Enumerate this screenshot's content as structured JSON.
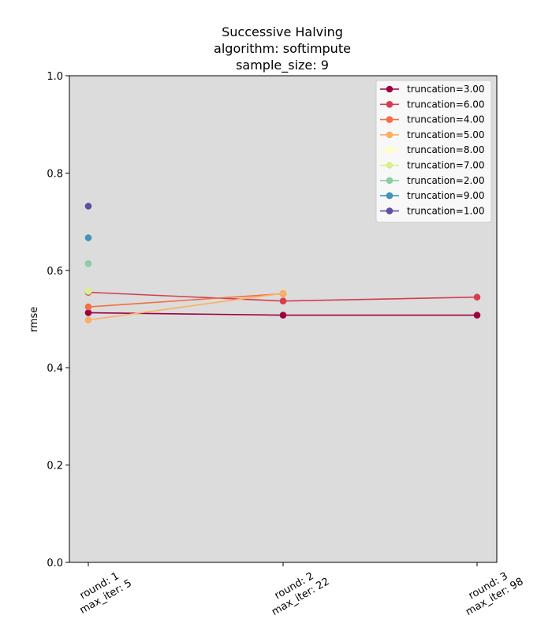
{
  "chart_data": {
    "type": "line",
    "title_lines": [
      "Successive Halving",
      "algorithm: softimpute",
      "sample_size: 9"
    ],
    "xlabel": "",
    "ylabel": "rmse",
    "ylim": [
      0,
      1
    ],
    "yticks": [
      "0.0",
      "0.2",
      "0.4",
      "0.6",
      "0.8",
      "1.0"
    ],
    "grid": false,
    "background": "#dcdcdc",
    "legend_position": "top-right",
    "x_categories": [
      [
        "round: 1",
        "max_iter: 5"
      ],
      [
        "round: 2",
        "max_iter: 22"
      ],
      [
        "round: 3",
        "max_iter: 98"
      ]
    ],
    "series": [
      {
        "name": "truncation=3.00",
        "color": "#9e0142",
        "values": [
          0.513,
          0.508,
          0.508
        ]
      },
      {
        "name": "truncation=6.00",
        "color": "#d53e4f",
        "values": [
          0.555,
          0.537,
          0.545
        ]
      },
      {
        "name": "truncation=4.00",
        "color": "#f46d43",
        "values": [
          0.525,
          0.552,
          null
        ]
      },
      {
        "name": "truncation=5.00",
        "color": "#fdae61",
        "values": [
          0.498,
          0.553,
          null
        ]
      },
      {
        "name": "truncation=8.00",
        "color": "#ffffbf",
        "values": [
          0.557,
          null,
          null
        ]
      },
      {
        "name": "truncation=7.00",
        "color": "#d8ef8b",
        "values": [
          0.557,
          null,
          null
        ]
      },
      {
        "name": "truncation=2.00",
        "color": "#88d0a4",
        "values": [
          0.614,
          null,
          null
        ]
      },
      {
        "name": "truncation=9.00",
        "color": "#3f96b7",
        "values": [
          0.667,
          null,
          null
        ]
      },
      {
        "name": "truncation=1.00",
        "color": "#5e4fa2",
        "values": [
          0.732,
          null,
          null
        ]
      }
    ]
  }
}
